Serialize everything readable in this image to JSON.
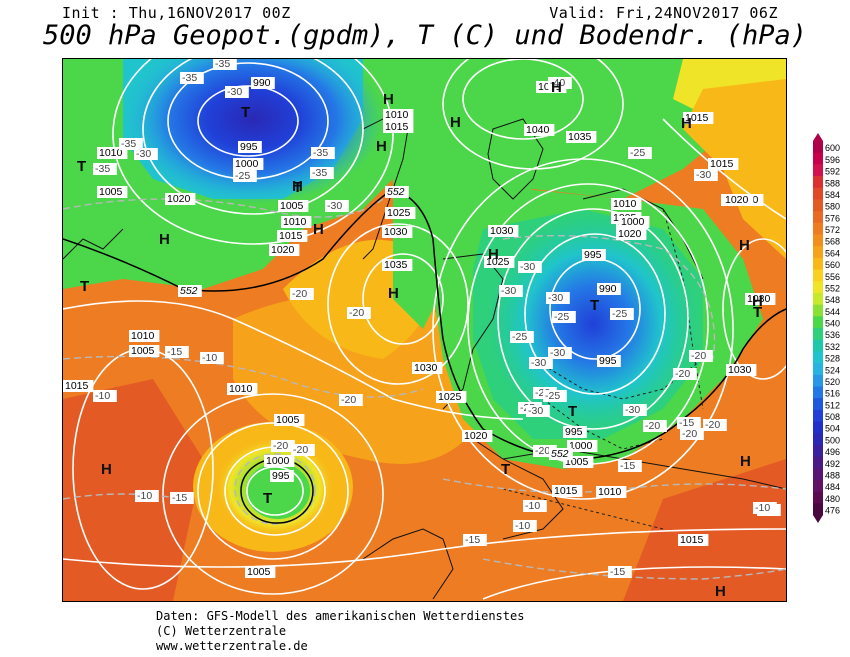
{
  "header": {
    "init": "Init : Thu,16NOV2017 00Z",
    "valid": "Valid: Fri,24NOV2017 06Z",
    "title": "500 hPa Geopot.(gpdm), T (C) und Bodendr. (hPa)"
  },
  "footer": {
    "line1": "Daten: GFS-Modell des amerikanischen Wetterdienstes",
    "line2": "(C) Wetterzentrale",
    "line3": "www.wetterzentrale.de"
  },
  "legend": {
    "values": [
      "600",
      "596",
      "592",
      "588",
      "584",
      "580",
      "576",
      "572",
      "568",
      "564",
      "560",
      "556",
      "552",
      "548",
      "544",
      "540",
      "536",
      "532",
      "528",
      "524",
      "520",
      "516",
      "512",
      "508",
      "504",
      "500",
      "496",
      "492",
      "488",
      "484",
      "480",
      "476"
    ],
    "colors": [
      "#b0004a",
      "#c8004c",
      "#d2104e",
      "#dc3030",
      "#e04828",
      "#e35a25",
      "#e86a24",
      "#ee7c22",
      "#f28e1e",
      "#f6a21a",
      "#f8b818",
      "#fad020",
      "#f0e428",
      "#c8e82c",
      "#8ae034",
      "#4cd64a",
      "#2ed07c",
      "#1ec8aa",
      "#20c4cc",
      "#28b4e0",
      "#2898e6",
      "#2478e6",
      "#2058e0",
      "#2040d8",
      "#2030c8",
      "#2a28b4",
      "#3a209e",
      "#4a1a88",
      "#581674",
      "#621262",
      "#5a0c50",
      "#4a0840"
    ]
  },
  "map": {
    "pressure_labels": [
      "990",
      "1045",
      "995",
      "1010",
      "1015",
      "1000",
      "1005",
      "1020",
      "1040",
      "1035",
      "1010",
      "1005",
      "1015",
      "1010",
      "1020",
      "1025",
      "1030",
      "1035",
      "1030",
      "1025",
      "1025",
      "1020",
      "1010",
      "1005",
      "1000",
      "995",
      "990",
      "995",
      "1015",
      "1030",
      "1020",
      "1015",
      "1010",
      "1005",
      "1010",
      "1005",
      "1000",
      "995",
      "1030",
      "1025",
      "1020",
      "1015",
      "1010",
      "1005",
      "1000",
      "995",
      "1010",
      "1015",
      "1020",
      "1015",
      "1005",
      "1030"
    ],
    "temp_labels": [
      "-35",
      "-35",
      "-30",
      "-35",
      "-30",
      "-35",
      "-35",
      "-35",
      "-25",
      "-30",
      "-40",
      "-25",
      "-30",
      "-20",
      "-20",
      "-30",
      "-30",
      "-30",
      "-25",
      "-30",
      "-30",
      "-25",
      "-20",
      "-20",
      "-20",
      "-15",
      "-15",
      "-15",
      "-10",
      "-10",
      "-10",
      "-10",
      "-15",
      "-15",
      "-10",
      "-20",
      "-25",
      "-20",
      "-20",
      "-25",
      "-30",
      "-20",
      "-20",
      "-15",
      "-20",
      "-10",
      "-10",
      "-20",
      "-30",
      "-25"
    ],
    "pressure_centers": [
      "T",
      "T",
      "T",
      "H",
      "H",
      "H",
      "H",
      "H",
      "H",
      "H",
      "T",
      "H",
      "T",
      "T",
      "H",
      "H",
      "T",
      "T",
      "H",
      "H",
      "T",
      "H",
      "H",
      "H"
    ],
    "isohypse_labels": [
      "552",
      "552",
      "552"
    ]
  }
}
